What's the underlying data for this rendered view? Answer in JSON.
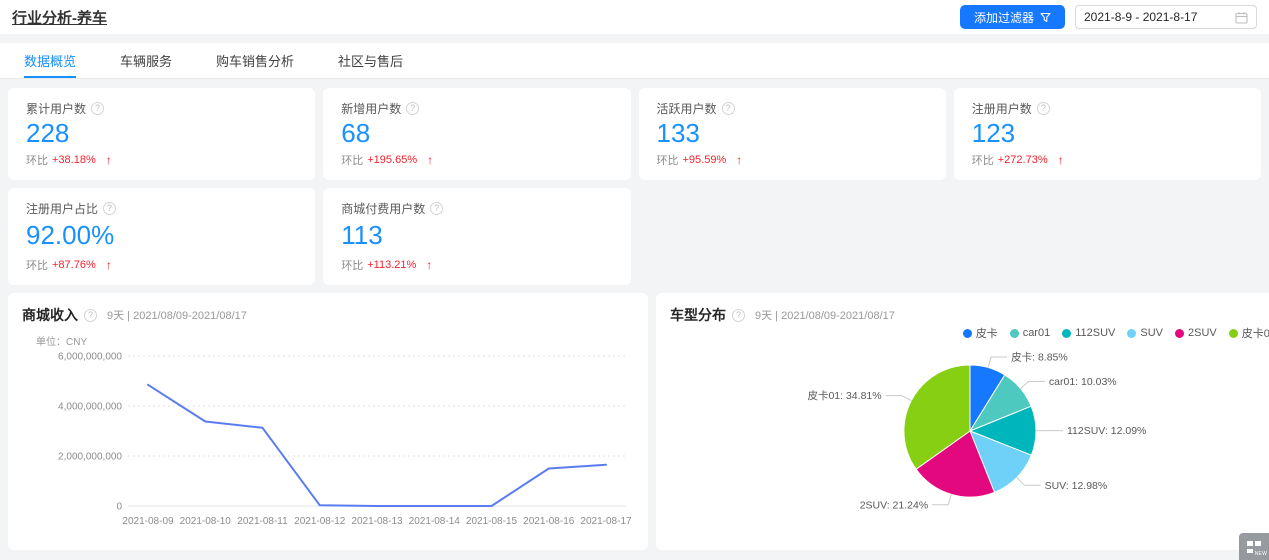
{
  "page_title": "行业分析-养车",
  "toolbar": {
    "filter_label": "添加过滤器",
    "date_range": "2021-8-9 - 2021-8-17"
  },
  "tabs": [
    {
      "label": "数据概览",
      "active": true
    },
    {
      "label": "车辆服务",
      "active": false
    },
    {
      "label": "购车销售分析",
      "active": false
    },
    {
      "label": "社区与售后",
      "active": false
    }
  ],
  "stat_cards": [
    {
      "title": "累计用户数",
      "value": "228",
      "compare_label": "环比",
      "compare_value": "+38.18%"
    },
    {
      "title": "新增用户数",
      "value": "68",
      "compare_label": "环比",
      "compare_value": "+195.65%"
    },
    {
      "title": "活跃用户数",
      "value": "133",
      "compare_label": "环比",
      "compare_value": "+95.59%"
    },
    {
      "title": "注册用户数",
      "value": "123",
      "compare_label": "环比",
      "compare_value": "+272.73%"
    },
    {
      "title": "注册用户占比",
      "value": "92.00%",
      "compare_label": "环比",
      "compare_value": "+87.76%"
    },
    {
      "title": "商城付费用户数",
      "value": "113",
      "compare_label": "环比",
      "compare_value": "+113.21%"
    }
  ],
  "chart_data": [
    {
      "type": "line",
      "title": "商城收入",
      "subtitle": "9天 | 2021/08/09-2021/08/17",
      "unit_label": "单位：CNY",
      "x": [
        "2021-08-09",
        "2021-08-10",
        "2021-08-11",
        "2021-08-12",
        "2021-08-13",
        "2021-08-14",
        "2021-08-15",
        "2021-08-16",
        "2021-08-17"
      ],
      "values": [
        4850000000,
        3380000000,
        3130000000,
        30000000,
        0,
        0,
        0,
        1500000000,
        1650000000
      ],
      "ylabel": "CNY",
      "ylim": [
        0,
        6000000000
      ],
      "yticks": [
        0,
        2000000000,
        4000000000,
        6000000000
      ],
      "ytick_labels": [
        "0",
        "2,000,000,000",
        "4,000,000,000",
        "6,000,000,000"
      ],
      "grid": "horizontal-dotted",
      "line_color": "#5b7cf0",
      "legend_position": "none"
    },
    {
      "type": "pie",
      "title": "车型分布",
      "subtitle": "9天 | 2021/08/09-2021/08/17",
      "start_angle": "top",
      "direction": "clockwise",
      "legend_position": "top-right",
      "slices": [
        {
          "name": "皮卡",
          "value": 8.85,
          "label": "皮卡: 8.85%",
          "color": "#1677ff"
        },
        {
          "name": "car01",
          "value": 10.03,
          "label": "car01: 10.03%",
          "color": "#4dc9c0"
        },
        {
          "name": "112SUV",
          "value": 12.09,
          "label": "112SUV: 12.09%",
          "color": "#00b6bd"
        },
        {
          "name": "SUV",
          "value": 12.98,
          "label": "SUV: 12.98%",
          "color": "#6fd0f8"
        },
        {
          "name": "2SUV",
          "value": 21.24,
          "label": "2SUV: 21.24%",
          "color": "#e3087e"
        },
        {
          "name": "皮卡01",
          "value": 34.81,
          "label": "皮卡01: 34.81%",
          "color": "#87cf12"
        }
      ]
    }
  ],
  "icons": {
    "help": "?",
    "up_arrow": "↑"
  },
  "floating_badge": "NEW"
}
